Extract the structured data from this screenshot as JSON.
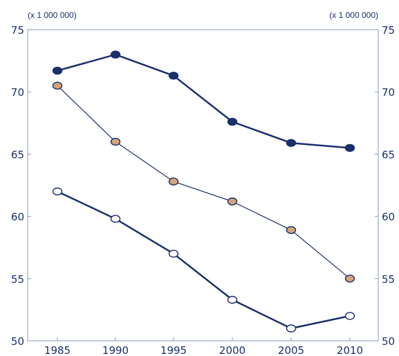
{
  "chart_data": {
    "type": "line",
    "x": [
      1985,
      1990,
      1995,
      2000,
      2005,
      2010
    ],
    "x_tick_labels": [
      "1985",
      "1990",
      "1995",
      "2000",
      "2005",
      "2010"
    ],
    "ylim": [
      50,
      75
    ],
    "y_ticks": [
      50,
      55,
      60,
      65,
      70,
      75
    ],
    "y_tick_labels": [
      "50",
      "55",
      "60",
      "65",
      "70",
      "75"
    ],
    "y_unit_left": "(x 1 000 000)",
    "y_unit_right": "(x 1 000 000)",
    "grid": false,
    "series": [
      {
        "values": [
          71.7,
          73.0,
          71.3,
          67.6,
          65.9,
          65.5
        ],
        "line_color": "#1b2f6b",
        "marker_fill": "#1b2f6b",
        "marker_stroke": "#1b2f6b",
        "line_style": "thick"
      },
      {
        "values": [
          70.5,
          66.0,
          62.8,
          61.2,
          58.9,
          55.0
        ],
        "line_color": "#1b2f6b",
        "marker_fill": "#d5a47a",
        "marker_stroke": "#1b2f6b",
        "line_style": "thin"
      },
      {
        "values": [
          62.0,
          59.8,
          57.0,
          53.3,
          51.0,
          52.0
        ],
        "line_color": "#1b2f6b",
        "marker_fill": "#ffffff",
        "marker_stroke": "#1b2f6b",
        "line_style": "thick"
      }
    ]
  }
}
